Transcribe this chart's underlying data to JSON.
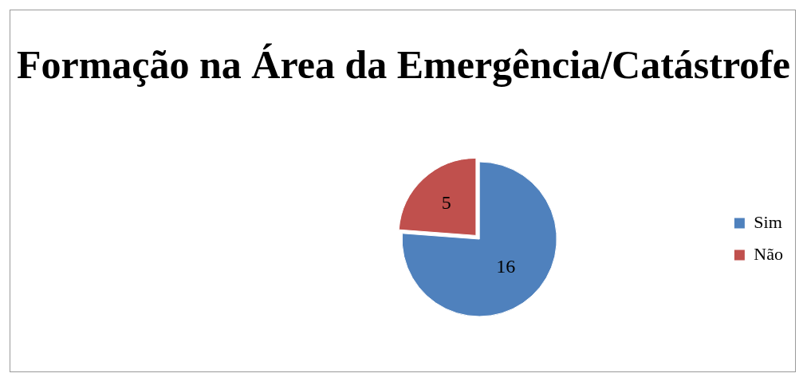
{
  "chart_data": {
    "type": "pie",
    "title": "Formação na Área da Emergência/Catástrofe",
    "categories": [
      "Sim",
      "Não"
    ],
    "values": [
      16,
      5
    ],
    "colors": [
      "#4f81bd",
      "#c0504d"
    ],
    "data_labels": true,
    "legend": "right"
  }
}
